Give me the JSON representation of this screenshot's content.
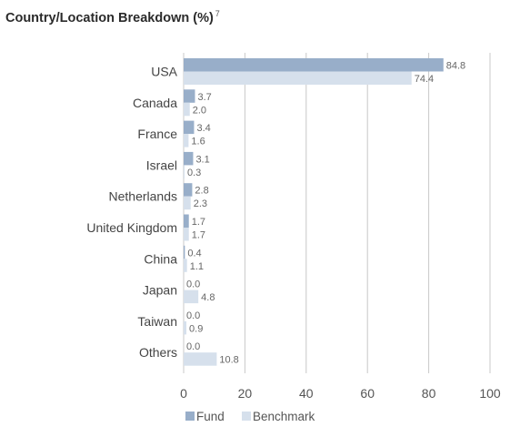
{
  "title": "Country/Location Breakdown (%)",
  "title_sup": "7",
  "colors": {
    "fund": "#98aec9",
    "benchmark": "#d6e0ec",
    "grid": "#c8c8c8"
  },
  "chart_data": {
    "type": "bar",
    "orientation": "horizontal",
    "categories": [
      "USA",
      "Canada",
      "France",
      "Israel",
      "Netherlands",
      "United Kingdom",
      "China",
      "Japan",
      "Taiwan",
      "Others"
    ],
    "series": [
      {
        "name": "Fund",
        "values": [
          84.8,
          3.7,
          3.4,
          3.1,
          2.8,
          1.7,
          0.4,
          0.0,
          0.0,
          0.0
        ],
        "labels": [
          "84.8",
          "3.7",
          "3.4",
          "3.1",
          "2.8",
          "1.7",
          "0.4",
          "0.0",
          "0.0",
          "0.0"
        ]
      },
      {
        "name": "Benchmark",
        "values": [
          74.4,
          2.0,
          1.6,
          0.3,
          2.3,
          1.7,
          1.1,
          4.8,
          0.9,
          10.8
        ],
        "labels": [
          "74.4",
          "2.0",
          "1.6",
          "0.3",
          "2.3",
          "1.7",
          "1.1",
          "4.8",
          "0.9",
          "10.8"
        ]
      }
    ],
    "xlim": [
      0,
      100
    ],
    "xticks": [
      0,
      20,
      40,
      60,
      80,
      100
    ],
    "xtick_labels": [
      "0",
      "20",
      "40",
      "60",
      "80",
      "100"
    ],
    "grid": true,
    "legend_position": "bottom"
  }
}
